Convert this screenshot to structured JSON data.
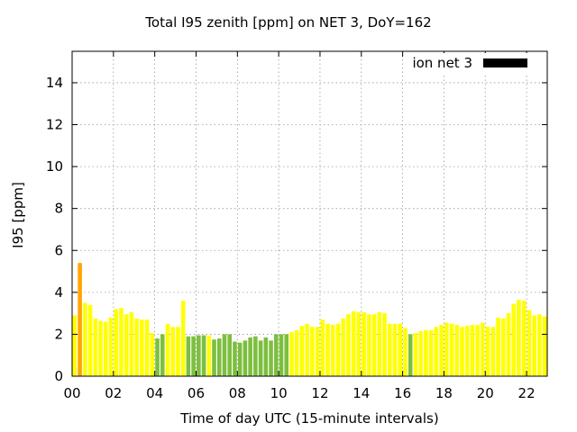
{
  "chart_data": {
    "type": "bar",
    "title": "Total I95 zenith [ppm] on NET 3, DoY=162",
    "xlabel": "Time of day UTC (15-minute intervals)",
    "ylabel": "I95 [ppm]",
    "xlim": [
      0,
      23
    ],
    "ylim": [
      0,
      15.5
    ],
    "xticks": [
      "00",
      "02",
      "04",
      "06",
      "08",
      "10",
      "12",
      "14",
      "16",
      "18",
      "20",
      "22"
    ],
    "yticks": [
      "0",
      "2",
      "4",
      "6",
      "8",
      "10",
      "12",
      "14"
    ],
    "grid": true,
    "legend": {
      "position": "top-right",
      "entries": [
        {
          "label": "ion net 3",
          "color": "#000000"
        }
      ]
    },
    "colors": {
      "yellow": "#ffff00",
      "green": "#7cbf3f",
      "orange": "#ffa500"
    },
    "bar_width_hours": 0.2,
    "bars": [
      {
        "x": 0.0,
        "value": 2.9,
        "color": "#ffff00"
      },
      {
        "x": 0.25,
        "value": 5.4,
        "color": "#ffa500"
      },
      {
        "x": 0.5,
        "value": 3.5,
        "color": "#ffff00"
      },
      {
        "x": 0.75,
        "value": 3.4,
        "color": "#ffff00"
      },
      {
        "x": 1.0,
        "value": 2.75,
        "color": "#ffff00"
      },
      {
        "x": 1.25,
        "value": 2.65,
        "color": "#ffff00"
      },
      {
        "x": 1.5,
        "value": 2.6,
        "color": "#ffff00"
      },
      {
        "x": 1.75,
        "value": 2.8,
        "color": "#ffff00"
      },
      {
        "x": 2.0,
        "value": 3.2,
        "color": "#ffff00"
      },
      {
        "x": 2.25,
        "value": 3.25,
        "color": "#ffff00"
      },
      {
        "x": 2.5,
        "value": 2.95,
        "color": "#ffff00"
      },
      {
        "x": 2.75,
        "value": 3.05,
        "color": "#ffff00"
      },
      {
        "x": 3.0,
        "value": 2.75,
        "color": "#ffff00"
      },
      {
        "x": 3.25,
        "value": 2.7,
        "color": "#ffff00"
      },
      {
        "x": 3.5,
        "value": 2.7,
        "color": "#ffff00"
      },
      {
        "x": 3.75,
        "value": 2.05,
        "color": "#ffff00"
      },
      {
        "x": 4.0,
        "value": 1.8,
        "color": "#7cbf3f"
      },
      {
        "x": 4.25,
        "value": 2.0,
        "color": "#7cbf3f"
      },
      {
        "x": 4.5,
        "value": 2.5,
        "color": "#ffff00"
      },
      {
        "x": 4.75,
        "value": 2.35,
        "color": "#ffff00"
      },
      {
        "x": 5.0,
        "value": 2.35,
        "color": "#ffff00"
      },
      {
        "x": 5.25,
        "value": 3.6,
        "color": "#ffff00"
      },
      {
        "x": 5.5,
        "value": 1.9,
        "color": "#7cbf3f"
      },
      {
        "x": 5.75,
        "value": 1.9,
        "color": "#7cbf3f"
      },
      {
        "x": 6.0,
        "value": 1.95,
        "color": "#7cbf3f"
      },
      {
        "x": 6.25,
        "value": 1.95,
        "color": "#7cbf3f"
      },
      {
        "x": 6.5,
        "value": 1.95,
        "color": "#ffff00"
      },
      {
        "x": 6.75,
        "value": 1.75,
        "color": "#7cbf3f"
      },
      {
        "x": 7.0,
        "value": 1.8,
        "color": "#7cbf3f"
      },
      {
        "x": 7.25,
        "value": 2.0,
        "color": "#7cbf3f"
      },
      {
        "x": 7.5,
        "value": 2.0,
        "color": "#7cbf3f"
      },
      {
        "x": 7.75,
        "value": 1.65,
        "color": "#7cbf3f"
      },
      {
        "x": 8.0,
        "value": 1.6,
        "color": "#7cbf3f"
      },
      {
        "x": 8.25,
        "value": 1.7,
        "color": "#7cbf3f"
      },
      {
        "x": 8.5,
        "value": 1.85,
        "color": "#7cbf3f"
      },
      {
        "x": 8.75,
        "value": 1.9,
        "color": "#7cbf3f"
      },
      {
        "x": 9.0,
        "value": 1.7,
        "color": "#7cbf3f"
      },
      {
        "x": 9.25,
        "value": 1.85,
        "color": "#7cbf3f"
      },
      {
        "x": 9.5,
        "value": 1.7,
        "color": "#7cbf3f"
      },
      {
        "x": 9.75,
        "value": 2.0,
        "color": "#7cbf3f"
      },
      {
        "x": 10.0,
        "value": 2.0,
        "color": "#7cbf3f"
      },
      {
        "x": 10.25,
        "value": 2.0,
        "color": "#7cbf3f"
      },
      {
        "x": 10.5,
        "value": 2.1,
        "color": "#ffff00"
      },
      {
        "x": 10.75,
        "value": 2.2,
        "color": "#ffff00"
      },
      {
        "x": 11.0,
        "value": 2.4,
        "color": "#ffff00"
      },
      {
        "x": 11.25,
        "value": 2.5,
        "color": "#ffff00"
      },
      {
        "x": 11.5,
        "value": 2.35,
        "color": "#ffff00"
      },
      {
        "x": 11.75,
        "value": 2.35,
        "color": "#ffff00"
      },
      {
        "x": 12.0,
        "value": 2.7,
        "color": "#ffff00"
      },
      {
        "x": 12.25,
        "value": 2.5,
        "color": "#ffff00"
      },
      {
        "x": 12.5,
        "value": 2.45,
        "color": "#ffff00"
      },
      {
        "x": 12.75,
        "value": 2.5,
        "color": "#ffff00"
      },
      {
        "x": 13.0,
        "value": 2.75,
        "color": "#ffff00"
      },
      {
        "x": 13.25,
        "value": 2.95,
        "color": "#ffff00"
      },
      {
        "x": 13.5,
        "value": 3.1,
        "color": "#ffff00"
      },
      {
        "x": 13.75,
        "value": 3.05,
        "color": "#ffff00"
      },
      {
        "x": 14.0,
        "value": 3.05,
        "color": "#ffff00"
      },
      {
        "x": 14.25,
        "value": 2.95,
        "color": "#ffff00"
      },
      {
        "x": 14.5,
        "value": 2.95,
        "color": "#ffff00"
      },
      {
        "x": 14.75,
        "value": 3.05,
        "color": "#ffff00"
      },
      {
        "x": 15.0,
        "value": 3.0,
        "color": "#ffff00"
      },
      {
        "x": 15.25,
        "value": 2.5,
        "color": "#ffff00"
      },
      {
        "x": 15.5,
        "value": 2.5,
        "color": "#ffff00"
      },
      {
        "x": 15.75,
        "value": 2.5,
        "color": "#ffff00"
      },
      {
        "x": 16.0,
        "value": 2.3,
        "color": "#ffff00"
      },
      {
        "x": 16.25,
        "value": 2.0,
        "color": "#7cbf3f"
      },
      {
        "x": 16.5,
        "value": 2.05,
        "color": "#ffff00"
      },
      {
        "x": 16.75,
        "value": 2.15,
        "color": "#ffff00"
      },
      {
        "x": 17.0,
        "value": 2.2,
        "color": "#ffff00"
      },
      {
        "x": 17.25,
        "value": 2.2,
        "color": "#ffff00"
      },
      {
        "x": 17.5,
        "value": 2.35,
        "color": "#ffff00"
      },
      {
        "x": 17.75,
        "value": 2.45,
        "color": "#ffff00"
      },
      {
        "x": 18.0,
        "value": 2.55,
        "color": "#ffff00"
      },
      {
        "x": 18.25,
        "value": 2.5,
        "color": "#ffff00"
      },
      {
        "x": 18.5,
        "value": 2.45,
        "color": "#ffff00"
      },
      {
        "x": 18.75,
        "value": 2.35,
        "color": "#ffff00"
      },
      {
        "x": 19.0,
        "value": 2.4,
        "color": "#ffff00"
      },
      {
        "x": 19.25,
        "value": 2.45,
        "color": "#ffff00"
      },
      {
        "x": 19.5,
        "value": 2.45,
        "color": "#ffff00"
      },
      {
        "x": 19.75,
        "value": 2.55,
        "color": "#ffff00"
      },
      {
        "x": 20.0,
        "value": 2.35,
        "color": "#ffff00"
      },
      {
        "x": 20.25,
        "value": 2.35,
        "color": "#ffff00"
      },
      {
        "x": 20.5,
        "value": 2.8,
        "color": "#ffff00"
      },
      {
        "x": 20.75,
        "value": 2.75,
        "color": "#ffff00"
      },
      {
        "x": 21.0,
        "value": 3.0,
        "color": "#ffff00"
      },
      {
        "x": 21.25,
        "value": 3.45,
        "color": "#ffff00"
      },
      {
        "x": 21.5,
        "value": 3.65,
        "color": "#ffff00"
      },
      {
        "x": 21.75,
        "value": 3.6,
        "color": "#ffff00"
      },
      {
        "x": 22.0,
        "value": 3.15,
        "color": "#ffff00"
      },
      {
        "x": 22.25,
        "value": 2.9,
        "color": "#ffff00"
      },
      {
        "x": 22.5,
        "value": 2.95,
        "color": "#ffff00"
      },
      {
        "x": 22.75,
        "value": 2.85,
        "color": "#ffff00"
      }
    ]
  }
}
